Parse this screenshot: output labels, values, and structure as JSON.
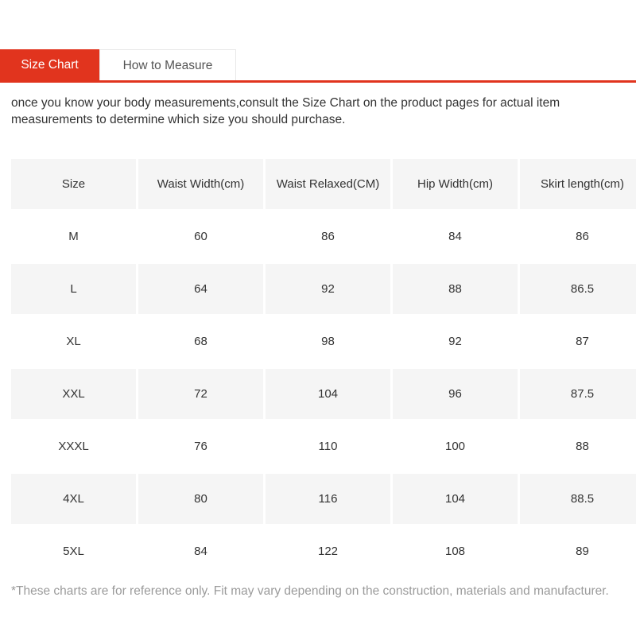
{
  "colors": {
    "accent_red": "#e1341e",
    "header_gray": "#f5f5f5",
    "text_dark": "#333333",
    "text_muted": "#9b9b9b"
  },
  "tabs": [
    {
      "label": "Size Chart",
      "active": true
    },
    {
      "label": "How to Measure",
      "active": false
    }
  ],
  "intro_text": "once you know your body measurements,consult the Size Chart on the product pages for actual item measurements to determine which size you should purchase.",
  "table": {
    "columns": [
      "Size",
      "Waist Width(cm)",
      "Waist Relaxed(CM)",
      "Hip Width(cm)",
      "Skirt length(cm)"
    ],
    "rows": [
      [
        "M",
        "60",
        "86",
        "84",
        "86"
      ],
      [
        "L",
        "64",
        "92",
        "88",
        "86.5"
      ],
      [
        "XL",
        "68",
        "98",
        "92",
        "87"
      ],
      [
        "XXL",
        "72",
        "104",
        "96",
        "87.5"
      ],
      [
        "XXXL",
        "76",
        "110",
        "100",
        "88"
      ],
      [
        "4XL",
        "80",
        "116",
        "104",
        "88.5"
      ],
      [
        "5XL",
        "84",
        "122",
        "108",
        "89"
      ]
    ]
  },
  "footnote": "*These charts are for reference only. Fit may vary depending on the construction, materials and manufacturer."
}
